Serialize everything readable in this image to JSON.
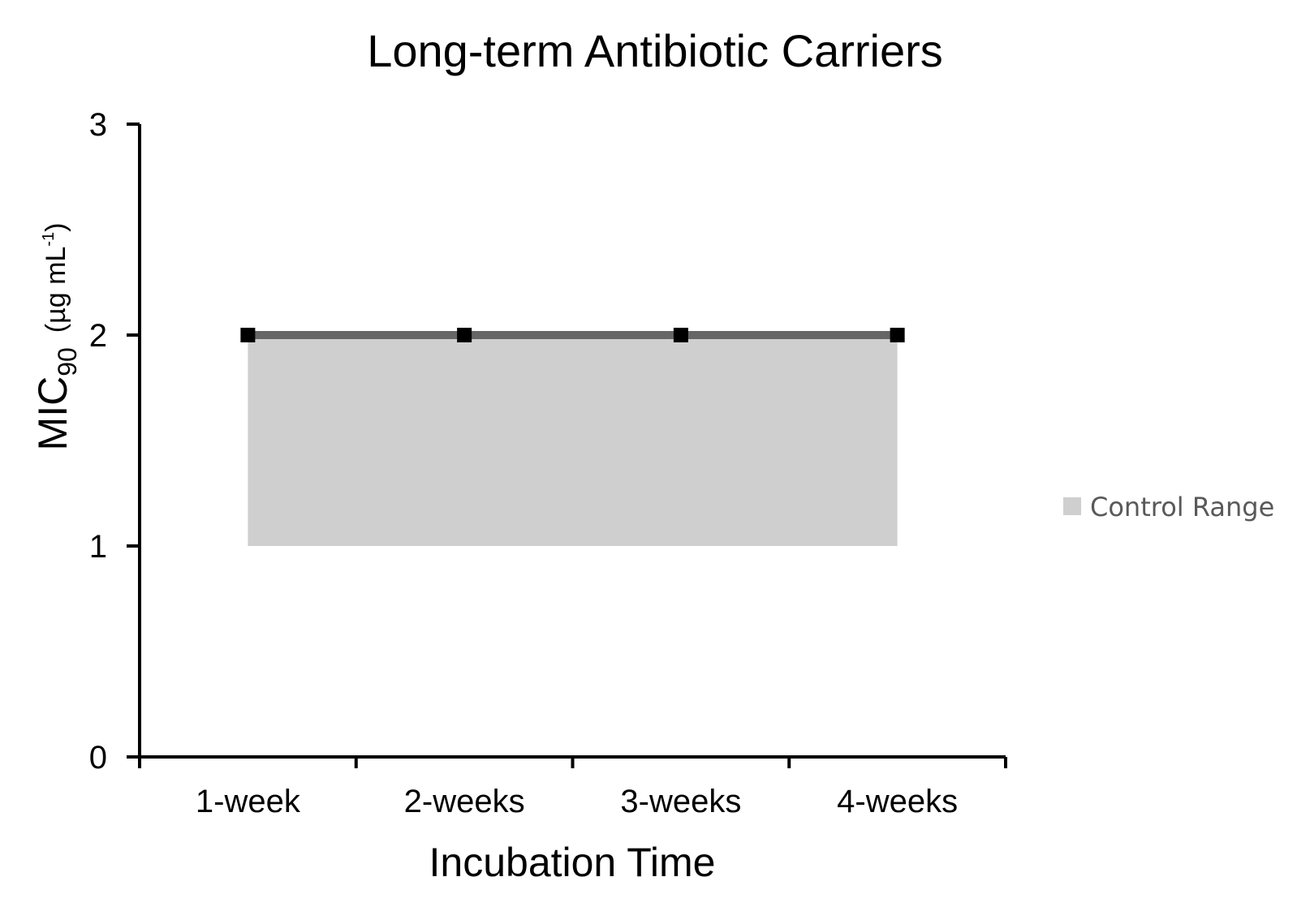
{
  "chart_data": {
    "type": "line",
    "title": "Long-term Antibiotic Carriers",
    "xlabel": "Incubation Time",
    "ylabel": {
      "main": "MIC",
      "subscript": "90",
      "unit": "(µg mL",
      "unit_superscript": "-1",
      "unit_close": ")"
    },
    "categories": [
      "1-week",
      "2-weeks",
      "3-weeks",
      "4-weeks"
    ],
    "ylim": [
      0,
      3
    ],
    "yticks": [
      "0",
      "1",
      "2",
      "3"
    ],
    "grid": false,
    "series": [
      {
        "values": [
          2,
          2,
          2,
          2
        ],
        "line_color": "#666666",
        "marker": "square",
        "marker_color": "#000000"
      }
    ],
    "band": {
      "name": "Control Range",
      "lower": [
        1,
        1,
        1,
        1
      ],
      "upper": [
        2,
        2,
        2,
        2
      ],
      "color": "#d0cfcf"
    },
    "legend": {
      "placement": "right",
      "entries": [
        "Control Range"
      ]
    }
  }
}
